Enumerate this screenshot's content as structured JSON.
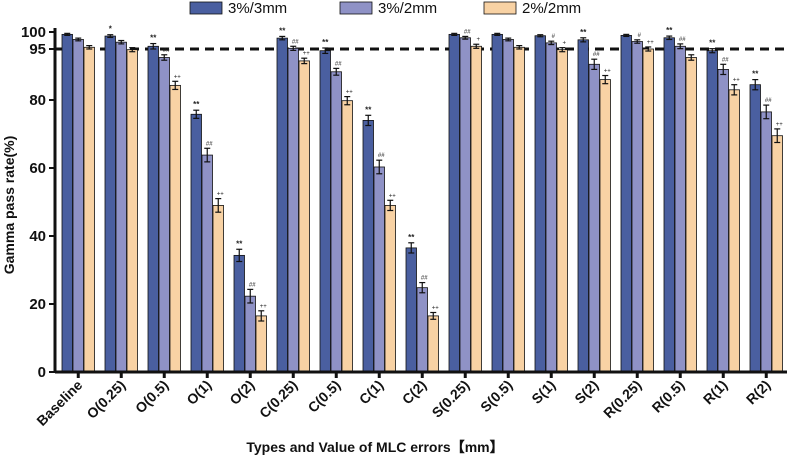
{
  "chart_data": {
    "type": "bar",
    "title": "",
    "xlabel": "Types and Value of MLC errors【mm】",
    "ylabel": "Gamma pass rate(%)",
    "ylim": [
      0,
      100
    ],
    "yticks": [
      0,
      20,
      40,
      60,
      80,
      95,
      100
    ],
    "reference_line": {
      "value": 95,
      "style": "dashed"
    },
    "legend_position": "top-center",
    "categories": [
      "Baseline",
      "O(0.25)",
      "O(0.5)",
      "O(1)",
      "O(2)",
      "C(0.25)",
      "C(0.5)",
      "C(1)",
      "C(2)",
      "S(0.25)",
      "S(0.5)",
      "S(1)",
      "S(2)",
      "R(0.25)",
      "R(0.5)",
      "R(1)",
      "R(2)"
    ],
    "series": [
      {
        "name": "3%/3mm",
        "color": "#4a5fa0",
        "values": [
          99.3,
          98.8,
          95.8,
          75.8,
          34.3,
          98.2,
          94.5,
          74.0,
          36.5,
          99.3,
          99.3,
          98.9,
          97.7,
          99.0,
          98.3,
          94.5,
          84.5
        ],
        "errors": [
          0.3,
          0.4,
          0.8,
          1.2,
          1.8,
          0.5,
          0.8,
          1.5,
          1.5,
          0.3,
          0.3,
          0.3,
          0.6,
          0.3,
          0.5,
          0.6,
          1.5
        ],
        "sig": [
          "",
          "*",
          "**",
          "**",
          "**",
          "**",
          "**",
          "**",
          "**",
          "",
          "",
          "",
          "**",
          "",
          "**",
          "**",
          "**"
        ]
      },
      {
        "name": "3%/2mm",
        "color": "#8f92c6",
        "values": [
          97.8,
          97.0,
          92.5,
          63.8,
          22.3,
          95.2,
          88.3,
          60.3,
          24.8,
          98.3,
          97.8,
          96.8,
          90.5,
          97.2,
          95.8,
          89.0,
          76.5
        ],
        "errors": [
          0.4,
          0.5,
          0.8,
          2.0,
          2.0,
          0.6,
          1.0,
          2.0,
          1.5,
          0.4,
          0.4,
          0.5,
          1.5,
          0.5,
          0.7,
          1.5,
          2.0
        ],
        "sig": [
          "",
          "",
          "##",
          "##",
          "##",
          "##",
          "##",
          "##",
          "##",
          "##",
          "",
          "#",
          "##",
          "#",
          "##",
          "##",
          "##"
        ]
      },
      {
        "name": "2%/2mm",
        "color": "#f8d2a4",
        "values": [
          95.5,
          94.8,
          84.3,
          49.0,
          16.5,
          91.5,
          79.8,
          49.0,
          16.5,
          95.8,
          95.5,
          94.8,
          86.0,
          95.0,
          92.5,
          83.0,
          69.5
        ],
        "errors": [
          0.5,
          0.6,
          1.2,
          2.0,
          1.5,
          0.8,
          1.2,
          1.5,
          1.0,
          0.6,
          0.5,
          0.6,
          1.2,
          0.6,
          0.8,
          1.5,
          2.0
        ],
        "sig": [
          "",
          "",
          "++",
          "++",
          "++",
          "++",
          "++",
          "++",
          "++",
          "+",
          "",
          "+",
          "++",
          "++",
          "",
          "++",
          "++"
        ]
      }
    ]
  }
}
